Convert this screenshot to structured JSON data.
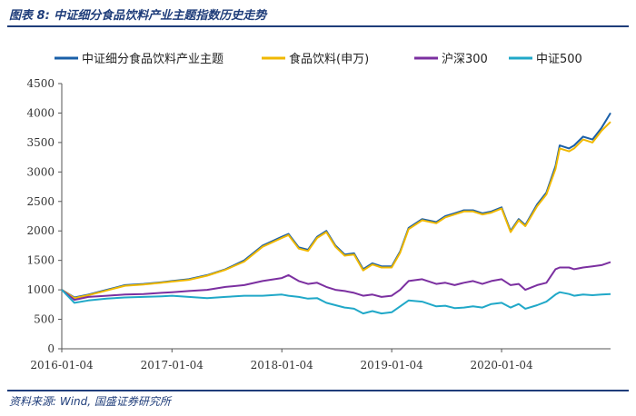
{
  "figure": {
    "title": "图表 8:  中证细分食品饮料产业主题指数历史走势",
    "source": "资料来源:  Wind,  国盛证券研究所"
  },
  "chart_data": {
    "type": "line",
    "title": "",
    "xlabel": "",
    "ylabel": "",
    "ylim": [
      0,
      4500
    ],
    "yticks": [
      0,
      500,
      1000,
      1500,
      2000,
      2500,
      3000,
      3500,
      4000,
      4500
    ],
    "xlim": [
      "2016-01-04",
      "2020-12-31"
    ],
    "xticks": [
      "2016-01-04",
      "2017-01-04",
      "2018-01-04",
      "2019-01-04",
      "2020-01-04"
    ],
    "grid": false,
    "legend": "top",
    "x": [
      "2016-01-04",
      "2016-02-15",
      "2016-04-01",
      "2016-06-01",
      "2016-08-01",
      "2016-10-01",
      "2016-12-01",
      "2017-01-04",
      "2017-03-01",
      "2017-05-01",
      "2017-07-01",
      "2017-09-01",
      "2017-11-01",
      "2018-01-04",
      "2018-01-26",
      "2018-03-01",
      "2018-04-01",
      "2018-05-01",
      "2018-06-01",
      "2018-07-01",
      "2018-08-01",
      "2018-09-01",
      "2018-10-01",
      "2018-11-01",
      "2018-12-01",
      "2019-01-04",
      "2019-02-01",
      "2019-03-01",
      "2019-04-15",
      "2019-06-01",
      "2019-07-01",
      "2019-08-01",
      "2019-09-01",
      "2019-10-01",
      "2019-11-01",
      "2019-12-01",
      "2020-01-04",
      "2020-02-03",
      "2020-03-01",
      "2020-03-23",
      "2020-05-01",
      "2020-06-01",
      "2020-07-01",
      "2020-07-15",
      "2020-08-15",
      "2020-09-01",
      "2020-10-01",
      "2020-11-01",
      "2020-12-01",
      "2020-12-31"
    ],
    "series": [
      {
        "name": "中证细分食品饮料产业主题",
        "color": "#1a5fa8",
        "values": [
          1000,
          870,
          920,
          1000,
          1080,
          1100,
          1130,
          1150,
          1180,
          1250,
          1350,
          1500,
          1750,
          1900,
          1950,
          1720,
          1680,
          1900,
          2000,
          1750,
          1600,
          1620,
          1350,
          1450,
          1400,
          1400,
          1650,
          2050,
          2200,
          2150,
          2250,
          2300,
          2350,
          2350,
          2300,
          2330,
          2400,
          2000,
          2200,
          2100,
          2450,
          2650,
          3100,
          3450,
          3400,
          3450,
          3600,
          3550,
          3750,
          4000
        ]
      },
      {
        "name": "食品饮料(申万)",
        "color": "#f0b800",
        "values": [
          1000,
          860,
          910,
          990,
          1070,
          1090,
          1120,
          1140,
          1170,
          1240,
          1340,
          1480,
          1730,
          1880,
          1930,
          1700,
          1660,
          1880,
          1980,
          1730,
          1580,
          1600,
          1330,
          1430,
          1380,
          1380,
          1630,
          2030,
          2180,
          2130,
          2230,
          2280,
          2330,
          2330,
          2280,
          2310,
          2380,
          1980,
          2180,
          2080,
          2420,
          2620,
          3050,
          3400,
          3350,
          3400,
          3550,
          3500,
          3700,
          3850
        ]
      },
      {
        "name": "沪深300",
        "color": "#7b2fa0",
        "values": [
          1000,
          830,
          880,
          900,
          920,
          930,
          950,
          960,
          980,
          1000,
          1050,
          1080,
          1150,
          1200,
          1250,
          1150,
          1100,
          1120,
          1050,
          1000,
          980,
          950,
          900,
          920,
          880,
          900,
          1000,
          1150,
          1180,
          1100,
          1120,
          1080,
          1120,
          1150,
          1100,
          1150,
          1180,
          1080,
          1100,
          1000,
          1080,
          1120,
          1350,
          1380,
          1380,
          1350,
          1380,
          1400,
          1420,
          1470
        ]
      },
      {
        "name": "中证500",
        "color": "#20a8c8",
        "values": [
          1000,
          780,
          820,
          850,
          870,
          880,
          890,
          900,
          880,
          860,
          880,
          900,
          900,
          920,
          900,
          880,
          850,
          860,
          780,
          740,
          700,
          680,
          600,
          640,
          600,
          620,
          720,
          820,
          800,
          720,
          730,
          690,
          700,
          720,
          700,
          760,
          780,
          700,
          760,
          680,
          740,
          800,
          920,
          960,
          930,
          900,
          920,
          910,
          920,
          930
        ]
      }
    ]
  }
}
